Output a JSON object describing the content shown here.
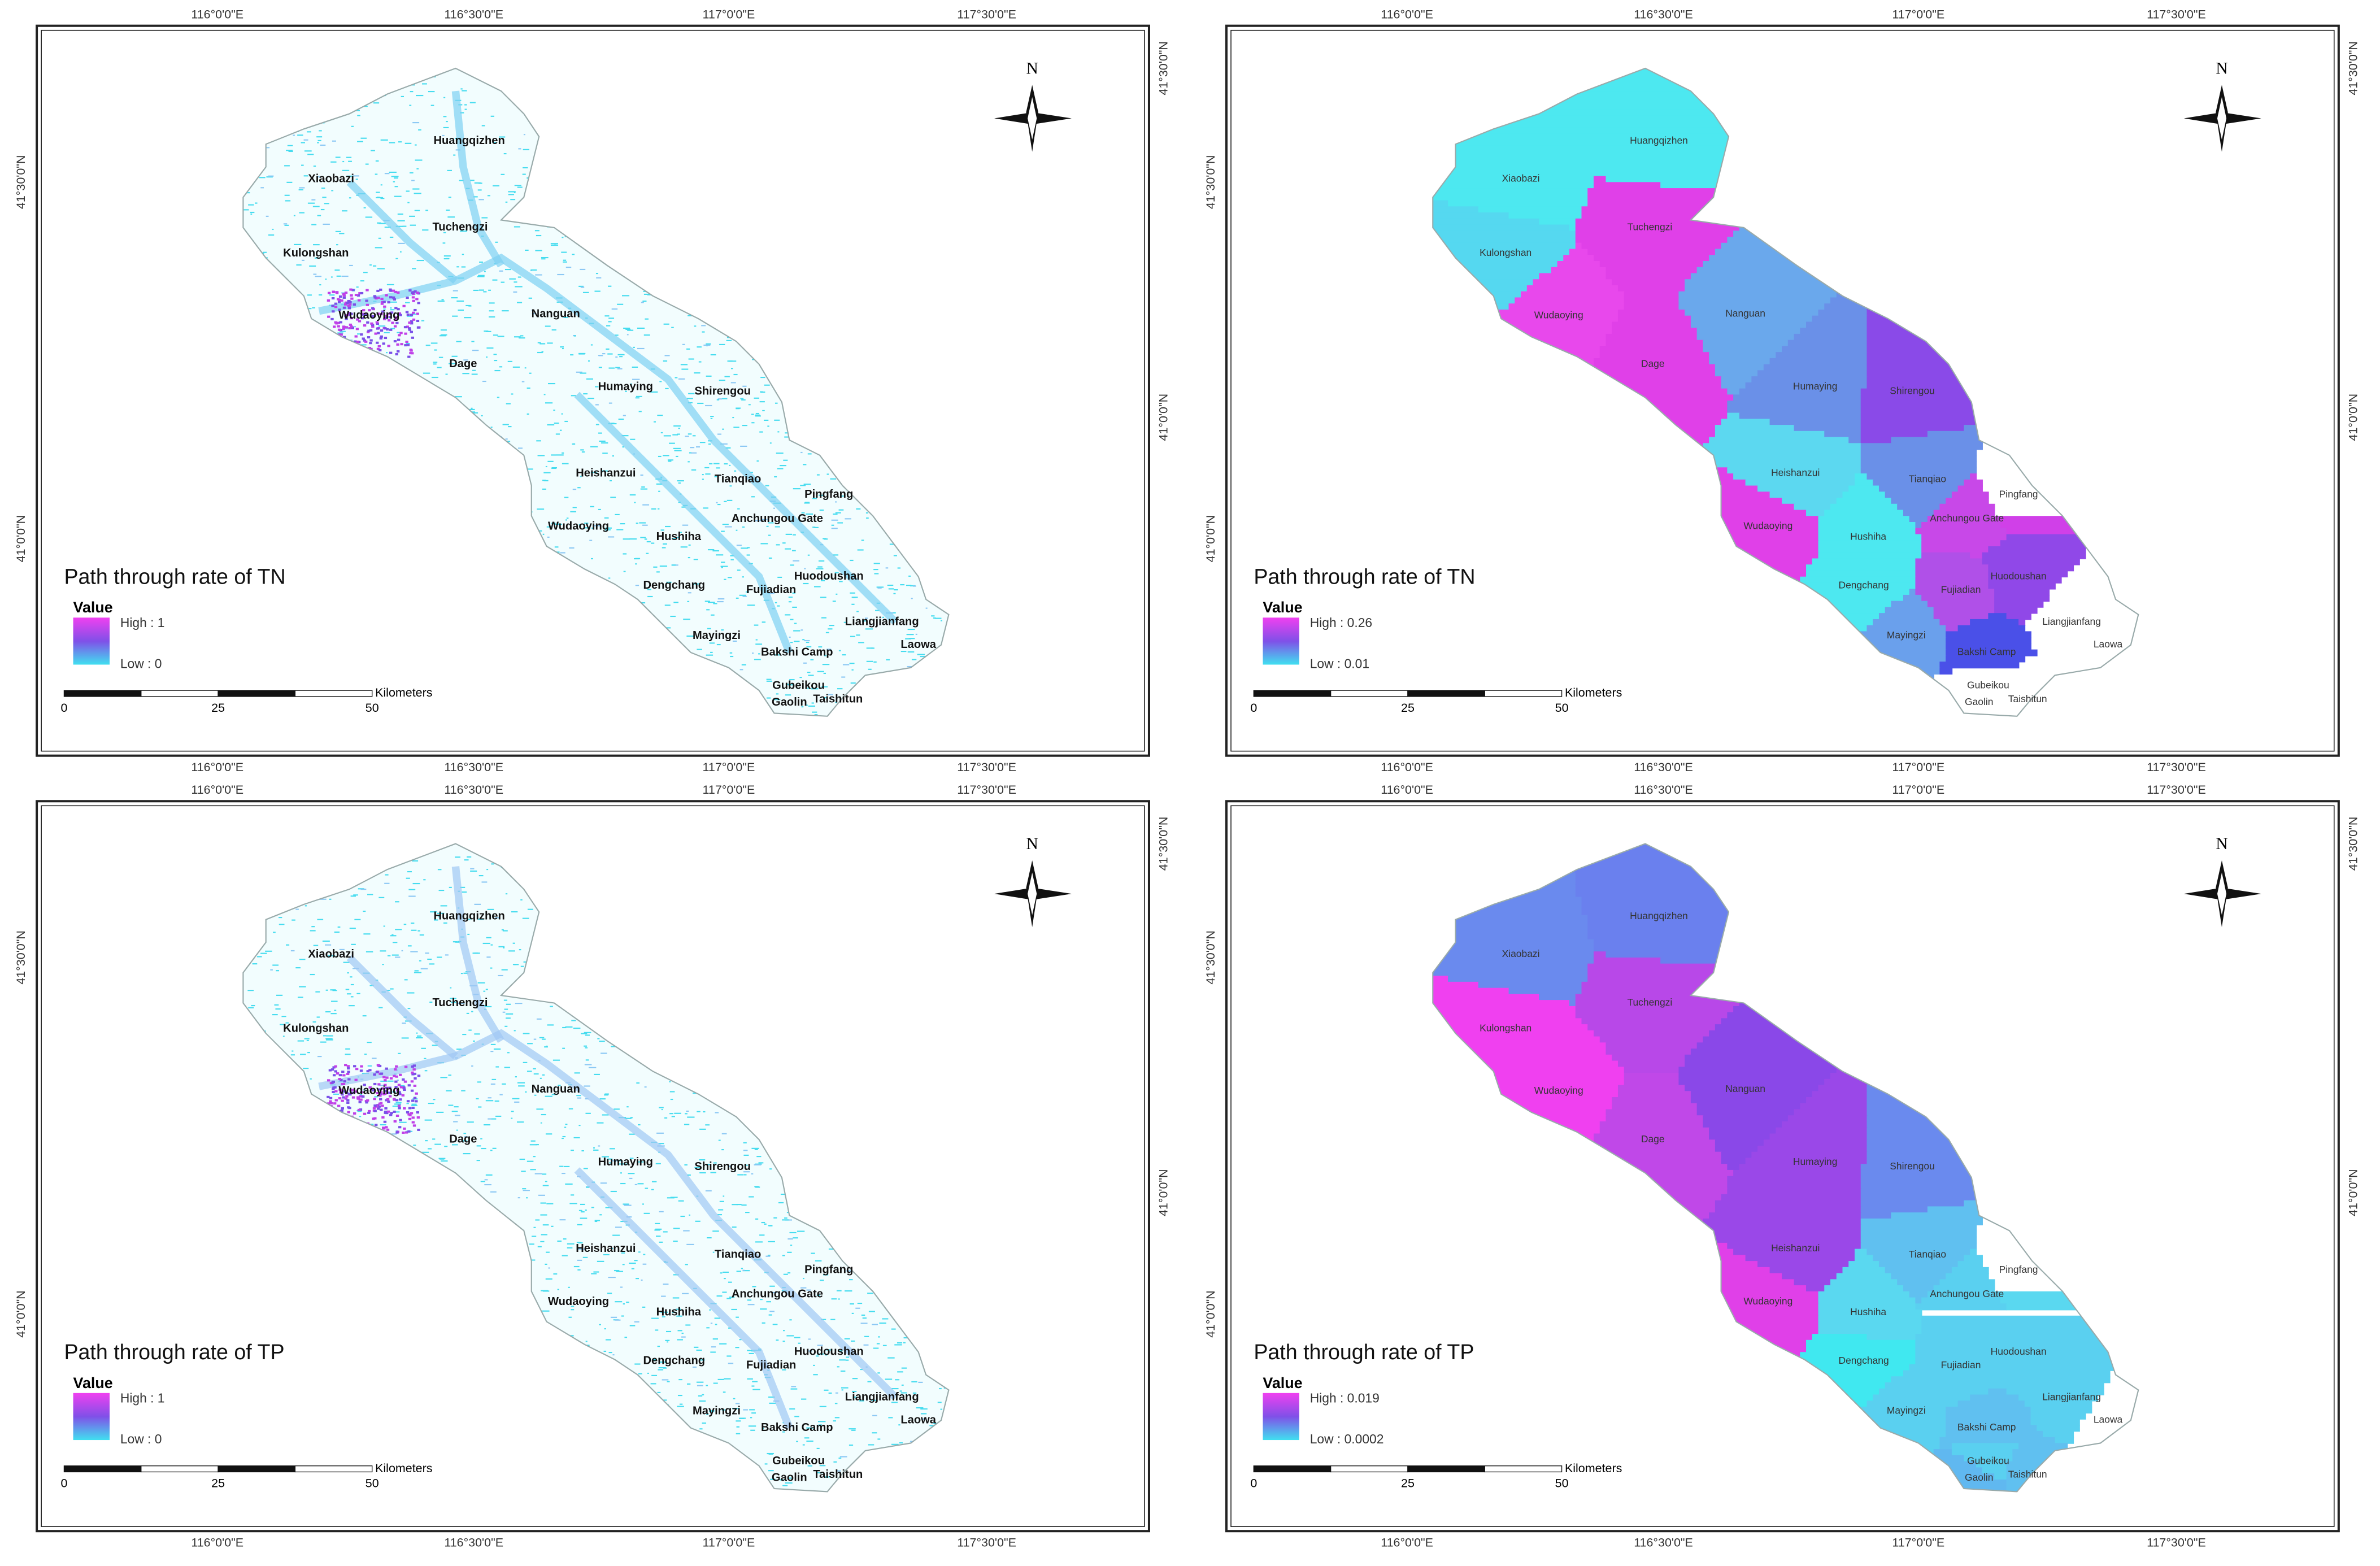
{
  "graticule": {
    "lon": [
      "116°0'0\"E",
      "116°30'0\"E",
      "117°0'0\"E",
      "117°30'0\"E"
    ],
    "lat": [
      "41°30'0\"N",
      "41°0'0\"N"
    ]
  },
  "north": "N",
  "places": [
    "Huangqizhen",
    "Xiaobazi",
    "Tuchengzi",
    "Kulongshan",
    "Nanguan",
    "Wudaoying",
    "Dage",
    "Humaying",
    "Shirengou",
    "Heishanzui",
    "Tianqiao",
    "Pingfang",
    "Anchungou Gate",
    "Wudaoying",
    "Hushiha",
    "Huodoushan",
    "Dengchang",
    "Fujiadian",
    "Liangjianfang",
    "Mayingzi",
    "Bakshi Camp",
    "Laowa",
    "Gubeikou",
    "Gaolin",
    "Taishitun"
  ],
  "scale": {
    "unit": "Kilometers",
    "ticks": [
      0,
      25,
      50
    ]
  },
  "legend_title": "Value",
  "panels": [
    {
      "title": "Path through rate of TN",
      "high": "High : 1",
      "low": "Low : 0",
      "kind": "raster",
      "colors": []
    },
    {
      "title": "Path through rate of TN",
      "high": "High : 0.26",
      "low": "Low : 0.01",
      "kind": "choropleth",
      "colors": [
        "#4de8f0",
        "#4de8f0",
        "#e040e8",
        "#55d8f0",
        "#6aa8ec",
        "#e848ec",
        "#e040e8",
        "#6a90e8",
        "#8a4ae8",
        "#5cd8f0",
        "#6a90e8",
        "#d040e8",
        "#c848e8",
        "#e040e8",
        "#4de8f0",
        "#9048e8",
        "#4de8f0",
        "#b050e8",
        "#8a4ae8",
        "#6aa0ec",
        "#4a50e8",
        "#8a4ae8",
        "#8a4ae8",
        "#8a4ae8",
        "#8a4ae8"
      ]
    },
    {
      "title": "Path through rate of TP",
      "high": "High : 1",
      "low": "Low : 0",
      "kind": "raster",
      "colors": []
    },
    {
      "title": "Path through rate of TP",
      "high": "High : 0.019",
      "low": "Low : 0.0002",
      "kind": "choropleth",
      "colors": [
        "#6a80ee",
        "#6a8aee",
        "#b848e8",
        "#f040f0",
        "#8a48e8",
        "#f040f0",
        "#c048e8",
        "#9a48e8",
        "#6a8aee",
        "#9a48e8",
        "#60c0f0",
        "#5ad8f0",
        "#5ad0f0",
        "#e040e8",
        "#5ad8f0",
        "#5ad0f0",
        "#40e8f0",
        "#5ad0f0",
        "#5ad0f0",
        "#5ad0f0",
        "#60c0f0",
        "#5ad8f0",
        "#5ad0f0",
        "#60b8f0",
        "#60c0f0"
      ]
    }
  ]
}
